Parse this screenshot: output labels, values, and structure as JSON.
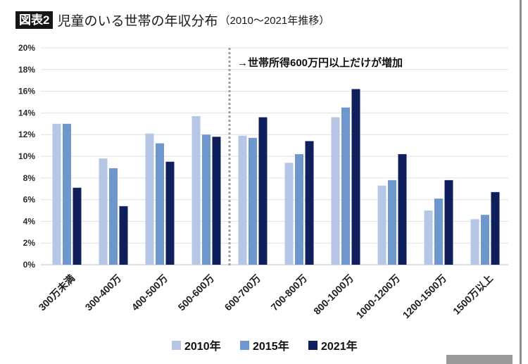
{
  "chart_data": {
    "type": "bar",
    "figure_label": "図表2",
    "title": "児童のいる世帯の年収分布",
    "subtitle": "（2010〜2021年推移）",
    "categories": [
      "300万未満",
      "300-400万",
      "400-500万",
      "500-600万",
      "600-700万",
      "700-800万",
      "800-1000万",
      "1000-1200万",
      "1200-1500万",
      "1500万以上"
    ],
    "series": [
      {
        "name": "2010年",
        "color": "#b5c6e6",
        "values": [
          13.0,
          9.8,
          12.1,
          13.7,
          11.9,
          9.4,
          13.6,
          7.3,
          5.0,
          4.2
        ]
      },
      {
        "name": "2015年",
        "color": "#6e97ce",
        "values": [
          13.0,
          8.9,
          11.2,
          12.0,
          11.7,
          10.2,
          14.5,
          7.8,
          6.1,
          4.6
        ]
      },
      {
        "name": "2021年",
        "color": "#0e1f5b",
        "values": [
          7.1,
          5.4,
          9.5,
          11.8,
          13.6,
          11.4,
          16.2,
          10.2,
          7.8,
          6.7
        ]
      }
    ],
    "ylim": [
      0,
      20
    ],
    "yticks": [
      0,
      2,
      4,
      6,
      8,
      10,
      12,
      14,
      16,
      18,
      20
    ],
    "ytick_labels": [
      "0%",
      "2%",
      "4%",
      "6%",
      "8%",
      "10%",
      "12%",
      "14%",
      "16%",
      "18%",
      "20%"
    ],
    "grid": true,
    "legend_position": "bottom",
    "annotation": {
      "text": "→世帯所得600万円以上だけが増加",
      "divider_after_category_index": 3,
      "divider_style": "dotted"
    }
  }
}
